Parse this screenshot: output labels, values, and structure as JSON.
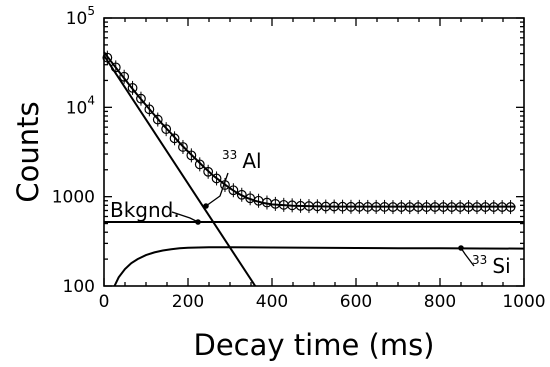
{
  "chart_data": {
    "type": "scatter",
    "xlabel": "Decay time (ms)",
    "ylabel": "Counts",
    "xlim": [
      0,
      1000
    ],
    "ylim": [
      100,
      100000
    ],
    "yscale": "log",
    "grid": false,
    "x_ticks": [
      "0",
      "200",
      "400",
      "600",
      "800",
      "1000"
    ],
    "y_ticks": [
      {
        "value": 100,
        "label": "100",
        "sup": ""
      },
      {
        "value": 1000,
        "label": "1000",
        "sup": ""
      },
      {
        "value": 10000,
        "label": "10",
        "sup": "4"
      },
      {
        "value": 100000,
        "label": "10",
        "sup": "5"
      }
    ],
    "annotations": {
      "al": {
        "mass": "33",
        "label": "Al"
      },
      "si": {
        "mass": "33",
        "label": "Si"
      },
      "bkgnd": {
        "label": "Bkgnd."
      }
    },
    "series": [
      {
        "kind": "points",
        "x": [
          8,
          28,
          48,
          68,
          88,
          108,
          128,
          148,
          168,
          188,
          208,
          228,
          248,
          268,
          288,
          308,
          328,
          348,
          368,
          388,
          408,
          428,
          448,
          468,
          488,
          508,
          528,
          548,
          568,
          588,
          608,
          628,
          648,
          668,
          688,
          708,
          728,
          748,
          768,
          788,
          808,
          828,
          848,
          868,
          888,
          908,
          928,
          948,
          968
        ],
        "y": [
          36000,
          28000,
          22000,
          16500,
          12500,
          9500,
          7300,
          5700,
          4500,
          3600,
          2900,
          2300,
          1900,
          1600,
          1350,
          1180,
          1050,
          960,
          900,
          860,
          830,
          810,
          800,
          790,
          785,
          780,
          775,
          775,
          772,
          770,
          770,
          768,
          768,
          768,
          765,
          765,
          765,
          765,
          765,
          765,
          765,
          765,
          765,
          765,
          765,
          765,
          765,
          765,
          765
        ]
      },
      {
        "kind": "line",
        "x": [
          0,
          20,
          40,
          60,
          80,
          100,
          120,
          140,
          160,
          180,
          200,
          220,
          240,
          260,
          280,
          300,
          320,
          340,
          360,
          380,
          400,
          450,
          500,
          550,
          600,
          650,
          700,
          750,
          800,
          850,
          900,
          950,
          980
        ],
        "y": [
          41500,
          31200,
          23600,
          17900,
          13700,
          10600,
          8200,
          6400,
          5100,
          4000,
          3200,
          2600,
          2100,
          1720,
          1460,
          1240,
          1080,
          970,
          900,
          850,
          820,
          790,
          780,
          775,
          775,
          775,
          775,
          775,
          775,
          775,
          775,
          775,
          775
        ]
      },
      {
        "kind": "line",
        "x": [
          0,
          360
        ],
        "y": [
          38000,
          100
        ]
      },
      {
        "kind": "line",
        "x": [
          0,
          1000
        ],
        "y": [
          520,
          520
        ]
      },
      {
        "kind": "line",
        "x": [
          25,
          35,
          50,
          65,
          80,
          100,
          120,
          140,
          160,
          180,
          200,
          250,
          300,
          400,
          500,
          600,
          700,
          800,
          900,
          1000
        ],
        "y": [
          100,
          125,
          155,
          180,
          200,
          222,
          238,
          250,
          258,
          264,
          268,
          272,
          272,
          270,
          268,
          266,
          265,
          264,
          263,
          262
        ]
      }
    ]
  }
}
